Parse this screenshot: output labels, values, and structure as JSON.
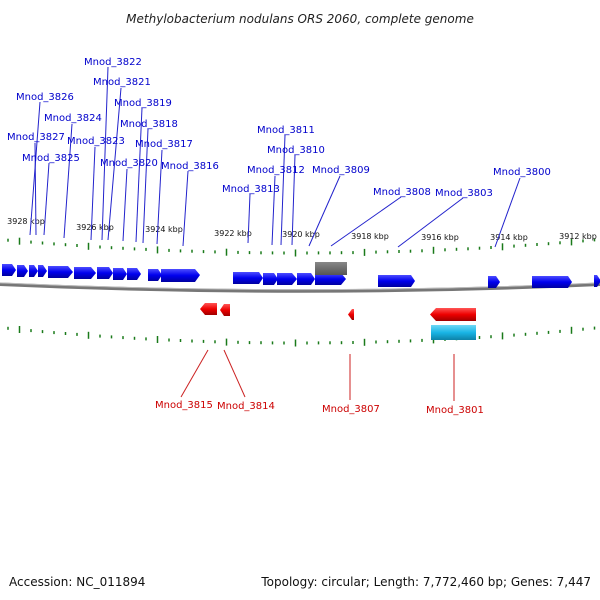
{
  "title": "Methylobacterium nodulans ORS 2060, complete genome",
  "footer": {
    "accession": "Accession: NC_011894",
    "info": "Topology: circular; Length: 7,772,460 bp; Genes: 7,447"
  },
  "colors": {
    "forward": "#0000ee",
    "reverse": "#ee0000",
    "other": "#666666",
    "rna": "#19b5e6",
    "ticks": "#1a7a1a",
    "backbone": "#888888"
  },
  "kbp_labels": [
    "3928 kbp",
    "3926 kbp",
    "3924 kbp",
    "3922 kbp",
    "3920 kbp",
    "3918 kbp",
    "3916 kbp",
    "3914 kbp",
    "3912 kbp"
  ],
  "forward_labels": [
    "Mnod_3826",
    "Mnod_3827",
    "Mnod_3824",
    "Mnod_3825",
    "Mnod_3823",
    "Mnod_3822",
    "Mnod_3821",
    "Mnod_3820",
    "Mnod_3819",
    "Mnod_3818",
    "Mnod_3817",
    "Mnod_3816",
    "Mnod_3813",
    "Mnod_3812",
    "Mnod_3811",
    "Mnod_3810",
    "Mnod_3809",
    "Mnod_3808",
    "Mnod_3803",
    "Mnod_3800"
  ],
  "reverse_labels": [
    "Mnod_3815",
    "Mnod_3814",
    "Mnod_3807",
    "Mnod_3801"
  ]
}
